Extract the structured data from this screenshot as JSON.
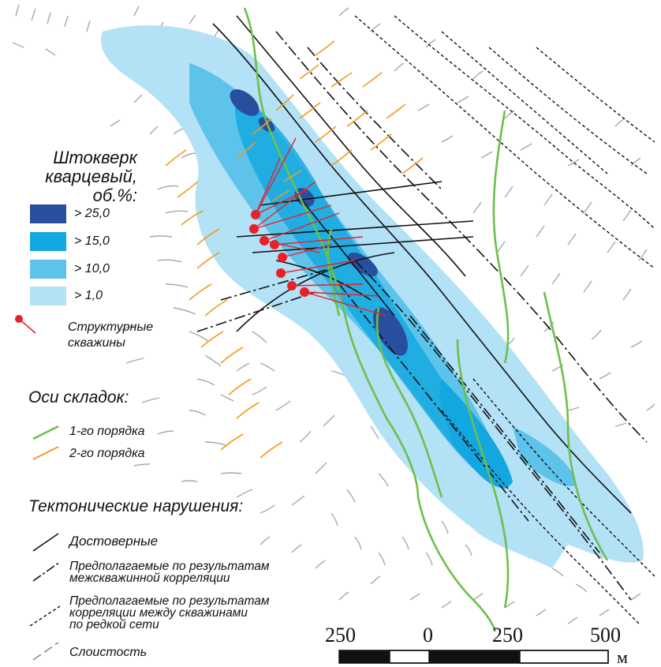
{
  "legend": {
    "stockwork": {
      "title_line1": "Штокверк",
      "title_line2": "кварцевый,",
      "title_line3": "об.%:",
      "classes": [
        {
          "label": "> 25,0",
          "color": "#2a4e9e"
        },
        {
          "label": "> 15,0",
          "color": "#12a7e0"
        },
        {
          "label": "> 10,0",
          "color": "#5dc3ea"
        },
        {
          "label": "> 1,0",
          "color": "#b3e1f6"
        }
      ]
    },
    "wells": {
      "label_line1": "Структурные",
      "label_line2": "скважины",
      "color": "#e8202a"
    },
    "folds": {
      "heading": "Оси складок:",
      "first_order": {
        "label": "1-го порядка",
        "color": "#6cc04a"
      },
      "second_order": {
        "label": "2-го порядка",
        "color": "#f29a1f"
      }
    },
    "faults": {
      "heading": "Тектонические нарушения:",
      "reliable": "Достоверные",
      "inferred_correlation_line1": "Предполагаемые по результатам",
      "inferred_correlation_line2": "межскважинной корреляции",
      "inferred_sparse_line1": "Предполагаемые по результатам",
      "inferred_sparse_line2": "корреляции между скважинами",
      "inferred_sparse_line3": "по редкой сети"
    },
    "bedding": {
      "label": "Слоистость",
      "color": "#8c8c8c"
    }
  },
  "scale_bar": {
    "labels": [
      "250",
      "0",
      "250",
      "500"
    ],
    "unit": "м"
  }
}
